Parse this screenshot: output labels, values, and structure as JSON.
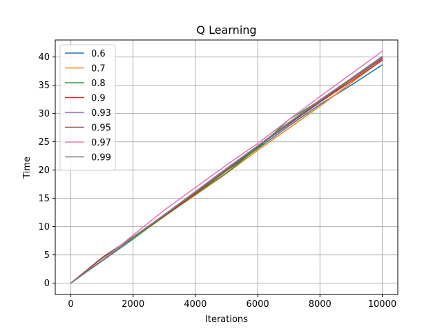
{
  "chart_data": {
    "type": "line",
    "title": "Q Learning",
    "xlabel": "Iterations",
    "ylabel": "Time",
    "xlim": [
      -500,
      10500
    ],
    "ylim": [
      -2,
      43
    ],
    "xticks": [
      0,
      2000,
      4000,
      6000,
      8000,
      10000
    ],
    "yticks": [
      0,
      5,
      10,
      15,
      20,
      25,
      30,
      35,
      40
    ],
    "grid": true,
    "legend_position": "top-left",
    "series": [
      {
        "name": "0.6",
        "color": "#1f77b4",
        "x": [
          0,
          1000,
          2000,
          3000,
          4000,
          5000,
          6000,
          7000,
          8000,
          9000,
          10000
        ],
        "y": [
          0,
          3.9,
          7.8,
          11.9,
          15.8,
          19.9,
          23.8,
          27.8,
          31.6,
          35.0,
          38.6
        ]
      },
      {
        "name": "0.7",
        "color": "#ff7f0e",
        "x": [
          0,
          1000,
          2000,
          3000,
          4000,
          5000,
          6000,
          7000,
          8000,
          9000,
          10000
        ],
        "y": [
          0,
          4.0,
          7.9,
          11.8,
          15.6,
          19.4,
          23.5,
          27.4,
          31.3,
          35.4,
          39.5
        ]
      },
      {
        "name": "0.8",
        "color": "#2ca02c",
        "x": [
          0,
          1000,
          2000,
          3000,
          4000,
          5000,
          6000,
          7000,
          8000,
          9000,
          10000
        ],
        "y": [
          0,
          4.0,
          7.9,
          11.8,
          15.7,
          19.5,
          23.9,
          28.9,
          32.3,
          36.1,
          40.0
        ]
      },
      {
        "name": "0.9",
        "color": "#d62728",
        "x": [
          0,
          1000,
          2000,
          3000,
          4000,
          5000,
          6000,
          7000,
          8000,
          9000,
          10000
        ],
        "y": [
          0,
          4.4,
          8.1,
          11.9,
          15.8,
          19.9,
          24.2,
          28.1,
          32.0,
          35.7,
          39.4
        ]
      },
      {
        "name": "0.93",
        "color": "#9467bd",
        "x": [
          0,
          1000,
          2000,
          3000,
          4000,
          5000,
          6000,
          7000,
          8000,
          9000,
          10000
        ],
        "y": [
          0,
          4.0,
          8.1,
          12.1,
          16.1,
          20.2,
          24.2,
          28.3,
          32.3,
          36.1,
          39.9
        ]
      },
      {
        "name": "0.95",
        "color": "#8c564b",
        "x": [
          0,
          1000,
          2000,
          3000,
          4000,
          5000,
          6000,
          7000,
          8000,
          9000,
          10000
        ],
        "y": [
          0,
          4.5,
          8.2,
          12.0,
          15.9,
          20.0,
          24.1,
          28.2,
          32.1,
          36.0,
          39.7
        ]
      },
      {
        "name": "0.97",
        "color": "#e377c2",
        "x": [
          0,
          1000,
          2000,
          3000,
          4000,
          5000,
          6000,
          7000,
          8000,
          9000,
          10000
        ],
        "y": [
          0,
          4.0,
          8.5,
          12.9,
          16.9,
          20.9,
          24.7,
          28.9,
          33.0,
          37.0,
          41.0
        ]
      },
      {
        "name": "0.99",
        "color": "#7f7f7f",
        "x": [
          0,
          1000,
          2000,
          3000,
          4000,
          5000,
          6000,
          7000,
          8000,
          9000,
          10000
        ],
        "y": [
          0,
          4.0,
          8.1,
          12.1,
          16.2,
          20.3,
          24.3,
          28.4,
          32.4,
          36.2,
          40.1
        ]
      }
    ]
  }
}
